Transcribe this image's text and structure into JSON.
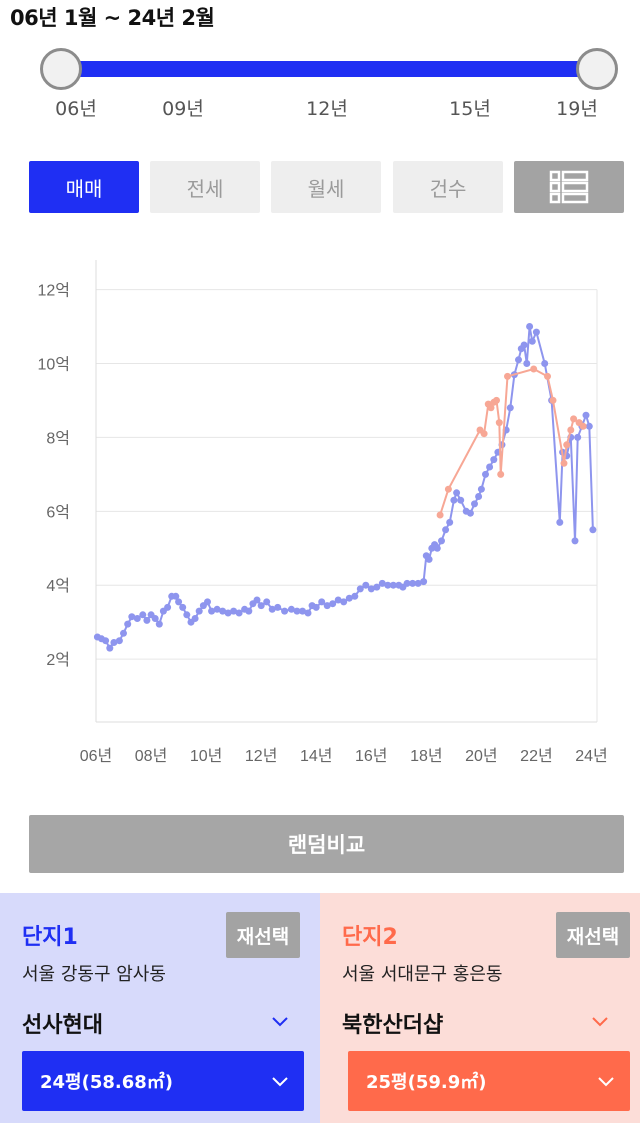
{
  "header": {
    "range_title": "06년 1월 ~ 24년 2월"
  },
  "slider": {
    "ticks": [
      "06년",
      "09년",
      "12년",
      "15년",
      "19년"
    ],
    "accent": "#1f2ff3",
    "selected_range_fraction": [
      0,
      1
    ]
  },
  "tabs": {
    "items": [
      "매매",
      "전세",
      "월세",
      "건수"
    ],
    "active": "매매",
    "list_icon": "list-view-icon"
  },
  "chart_data": {
    "type": "line",
    "title": "",
    "xlabel": "",
    "ylabel": "",
    "x_ticks": [
      "06년",
      "08년",
      "10년",
      "12년",
      "14년",
      "16년",
      "18년",
      "20년",
      "22년",
      "24년"
    ],
    "y_ticks": [
      "2억",
      "4억",
      "6억",
      "8억",
      "10억",
      "12억"
    ],
    "xlim": [
      2006,
      2024.2
    ],
    "ylim": [
      0.3,
      12.8
    ],
    "grid": true,
    "series": [
      {
        "color": "#8e95ee",
        "points": [
          [
            2006.05,
            2.6
          ],
          [
            2006.2,
            2.55
          ],
          [
            2006.35,
            2.5
          ],
          [
            2006.5,
            2.3
          ],
          [
            2006.65,
            2.45
          ],
          [
            2006.85,
            2.5
          ],
          [
            2007.0,
            2.7
          ],
          [
            2007.15,
            2.95
          ],
          [
            2007.3,
            3.15
          ],
          [
            2007.5,
            3.1
          ],
          [
            2007.7,
            3.2
          ],
          [
            2007.85,
            3.05
          ],
          [
            2008.0,
            3.2
          ],
          [
            2008.15,
            3.1
          ],
          [
            2008.3,
            2.95
          ],
          [
            2008.45,
            3.3
          ],
          [
            2008.6,
            3.4
          ],
          [
            2008.75,
            3.7
          ],
          [
            2008.9,
            3.7
          ],
          [
            2009.0,
            3.55
          ],
          [
            2009.15,
            3.4
          ],
          [
            2009.3,
            3.2
          ],
          [
            2009.45,
            3.0
          ],
          [
            2009.6,
            3.1
          ],
          [
            2009.75,
            3.3
          ],
          [
            2009.9,
            3.45
          ],
          [
            2010.05,
            3.55
          ],
          [
            2010.2,
            3.3
          ],
          [
            2010.4,
            3.35
          ],
          [
            2010.6,
            3.3
          ],
          [
            2010.8,
            3.25
          ],
          [
            2011.0,
            3.3
          ],
          [
            2011.2,
            3.25
          ],
          [
            2011.4,
            3.35
          ],
          [
            2011.55,
            3.3
          ],
          [
            2011.7,
            3.5
          ],
          [
            2011.85,
            3.6
          ],
          [
            2012.0,
            3.45
          ],
          [
            2012.2,
            3.55
          ],
          [
            2012.4,
            3.35
          ],
          [
            2012.6,
            3.4
          ],
          [
            2012.85,
            3.3
          ],
          [
            2013.1,
            3.35
          ],
          [
            2013.3,
            3.3
          ],
          [
            2013.5,
            3.3
          ],
          [
            2013.7,
            3.25
          ],
          [
            2013.85,
            3.45
          ],
          [
            2014.0,
            3.4
          ],
          [
            2014.2,
            3.55
          ],
          [
            2014.4,
            3.45
          ],
          [
            2014.6,
            3.5
          ],
          [
            2014.8,
            3.6
          ],
          [
            2015.0,
            3.55
          ],
          [
            2015.2,
            3.65
          ],
          [
            2015.4,
            3.7
          ],
          [
            2015.6,
            3.9
          ],
          [
            2015.8,
            4.0
          ],
          [
            2016.0,
            3.9
          ],
          [
            2016.2,
            3.95
          ],
          [
            2016.4,
            4.05
          ],
          [
            2016.6,
            4.0
          ],
          [
            2016.8,
            4.0
          ],
          [
            2017.0,
            4.0
          ],
          [
            2017.15,
            3.95
          ],
          [
            2017.3,
            4.05
          ],
          [
            2017.5,
            4.05
          ],
          [
            2017.7,
            4.05
          ],
          [
            2017.9,
            4.1
          ],
          [
            2018.0,
            4.8
          ],
          [
            2018.1,
            4.7
          ],
          [
            2018.2,
            5.0
          ],
          [
            2018.3,
            5.1
          ],
          [
            2018.4,
            5.0
          ],
          [
            2018.55,
            5.2
          ],
          [
            2018.7,
            5.5
          ],
          [
            2018.85,
            5.7
          ],
          [
            2019.0,
            6.3
          ],
          [
            2019.1,
            6.5
          ],
          [
            2019.25,
            6.3
          ],
          [
            2019.45,
            6.0
          ],
          [
            2019.6,
            5.95
          ],
          [
            2019.75,
            6.2
          ],
          [
            2019.9,
            6.4
          ],
          [
            2020.0,
            6.6
          ],
          [
            2020.15,
            7.0
          ],
          [
            2020.3,
            7.2
          ],
          [
            2020.45,
            7.4
          ],
          [
            2020.6,
            7.6
          ],
          [
            2020.75,
            7.8
          ],
          [
            2020.9,
            8.2
          ],
          [
            2021.05,
            8.8
          ],
          [
            2021.2,
            9.7
          ],
          [
            2021.35,
            10.1
          ],
          [
            2021.45,
            10.4
          ],
          [
            2021.55,
            10.5
          ],
          [
            2021.65,
            10.0
          ],
          [
            2021.75,
            11.0
          ],
          [
            2021.85,
            10.6
          ],
          [
            2022.0,
            10.85
          ],
          [
            2022.3,
            10.0
          ],
          [
            2022.55,
            9.0
          ],
          [
            2022.85,
            5.7
          ],
          [
            2022.95,
            7.6
          ],
          [
            2023.1,
            7.5
          ],
          [
            2023.25,
            8.0
          ],
          [
            2023.4,
            5.2
          ],
          [
            2023.5,
            8.0
          ],
          [
            2023.65,
            8.3
          ],
          [
            2023.8,
            8.6
          ],
          [
            2023.92,
            8.3
          ],
          [
            2024.05,
            5.5
          ]
        ]
      },
      {
        "color": "#f7a795",
        "points": [
          [
            2018.5,
            5.9
          ],
          [
            2018.8,
            6.6
          ],
          [
            2019.95,
            8.2
          ],
          [
            2020.1,
            8.1
          ],
          [
            2020.25,
            8.9
          ],
          [
            2020.35,
            8.8
          ],
          [
            2020.45,
            8.95
          ],
          [
            2020.55,
            9.0
          ],
          [
            2020.65,
            8.4
          ],
          [
            2020.7,
            7.0
          ],
          [
            2020.95,
            9.65
          ],
          [
            2021.9,
            9.85
          ],
          [
            2022.4,
            9.65
          ],
          [
            2022.6,
            9.0
          ],
          [
            2023.0,
            7.3
          ],
          [
            2023.1,
            7.8
          ],
          [
            2023.25,
            8.2
          ],
          [
            2023.35,
            8.5
          ],
          [
            2023.55,
            8.4
          ],
          [
            2023.7,
            8.3
          ]
        ]
      }
    ]
  },
  "random_button": {
    "label": "랜덤비교"
  },
  "complex1": {
    "title": "단지1",
    "reselect": "재선택",
    "address": "서울 강동구 암사동",
    "name": "선사현대",
    "size": "24평(58.68㎡)",
    "color": "#1f2ff3"
  },
  "complex2": {
    "title": "단지2",
    "reselect": "재선택",
    "address": "서울 서대문구 홍은동",
    "name": "북한산더샵",
    "size": "25평(59.9㎡)",
    "color": "#ff6a4b"
  }
}
